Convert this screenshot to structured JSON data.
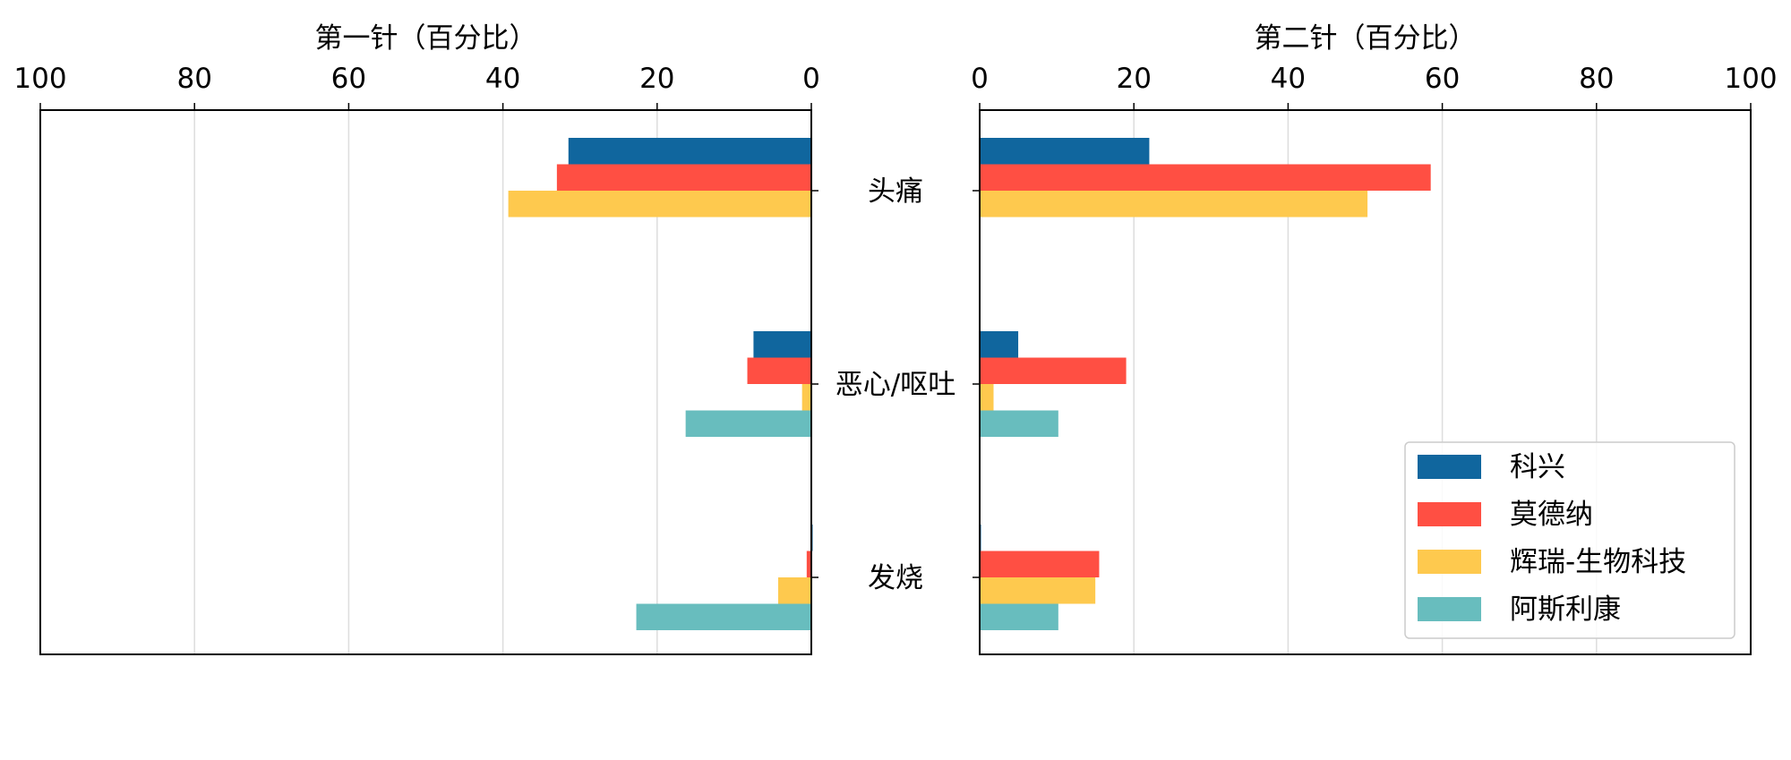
{
  "chart_data": {
    "type": "bar",
    "orientation": "horizontal",
    "categories": [
      "头痛",
      "恶心/呕吐",
      "发烧"
    ],
    "legend": {
      "placement": "lower-right",
      "labels": [
        "科兴",
        "莫德纳",
        "辉瑞-生物科技",
        "阿斯利康"
      ]
    },
    "grid": "vertical",
    "panels": [
      {
        "title": "第一针（百分比）",
        "direction": "reversed",
        "xlim": [
          100,
          0
        ],
        "xticks": [
          100,
          80,
          60,
          40,
          20,
          0
        ],
        "series": [
          {
            "name": "科兴",
            "color": "#10669E",
            "values": [
              31.5,
              7.5,
              0
            ]
          },
          {
            "name": "莫德纳",
            "color": "#FF4F43",
            "values": [
              33,
              8.3,
              0.6
            ]
          },
          {
            "name": "辉瑞-生物科技",
            "color": "#FEC94E",
            "values": [
              39.3,
              1.2,
              4.3
            ]
          },
          {
            "name": "阿斯利康",
            "color": "#68BDBE",
            "values": [
              null,
              16.3,
              22.7
            ]
          }
        ]
      },
      {
        "title": "第二针（百分比）",
        "direction": "normal",
        "xlim": [
          0,
          100
        ],
        "xticks": [
          0,
          20,
          40,
          60,
          80,
          100
        ],
        "series": [
          {
            "name": "科兴",
            "color": "#10669E",
            "values": [
              22,
              5,
              0
            ]
          },
          {
            "name": "莫德纳",
            "color": "#FF4F43",
            "values": [
              58.5,
              19,
              15.5
            ]
          },
          {
            "name": "辉瑞-生物科技",
            "color": "#FEC94E",
            "values": [
              50.3,
              1.8,
              15
            ]
          },
          {
            "name": "阿斯利康",
            "color": "#68BDBE",
            "values": [
              null,
              10.2,
              10.2
            ]
          }
        ]
      }
    ]
  }
}
